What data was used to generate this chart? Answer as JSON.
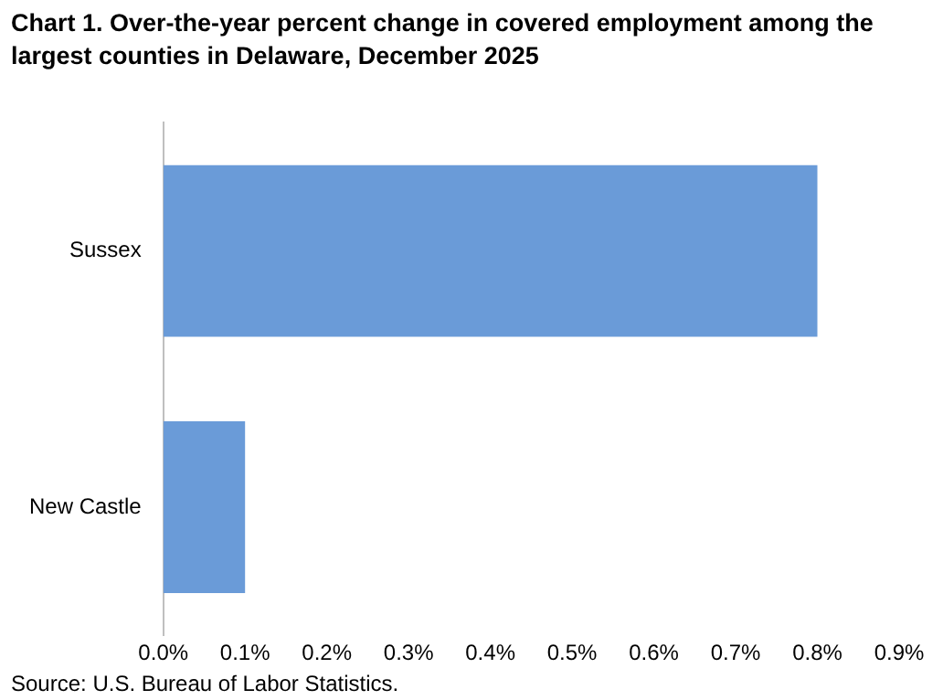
{
  "chart_data": {
    "type": "bar",
    "orientation": "horizontal",
    "title": "Chart 1. Over-the-year percent change in covered employment among the largest counties in Delaware, December 2025",
    "categories": [
      "Sussex",
      "New Castle"
    ],
    "values": [
      0.8,
      0.1
    ],
    "color": "#6a9bd8",
    "xlim": [
      0,
      0.9
    ],
    "xticks": [
      {
        "value": 0,
        "label": "0.0%"
      },
      {
        "value": 0.1,
        "label": "0.1%"
      },
      {
        "value": 0.2,
        "label": "0.2%"
      },
      {
        "value": 0.3,
        "label": "0.3%"
      },
      {
        "value": 0.4,
        "label": "0.4%"
      },
      {
        "value": 0.5,
        "label": "0.5%"
      },
      {
        "value": 0.6,
        "label": "0.6%"
      },
      {
        "value": 0.7,
        "label": "0.7%"
      },
      {
        "value": 0.8,
        "label": "0.8%"
      },
      {
        "value": 0.9,
        "label": "0.9%"
      }
    ],
    "grid": false,
    "legend": false,
    "annotations": [
      "Source: U.S. Bureau of Labor Statistics."
    ]
  }
}
